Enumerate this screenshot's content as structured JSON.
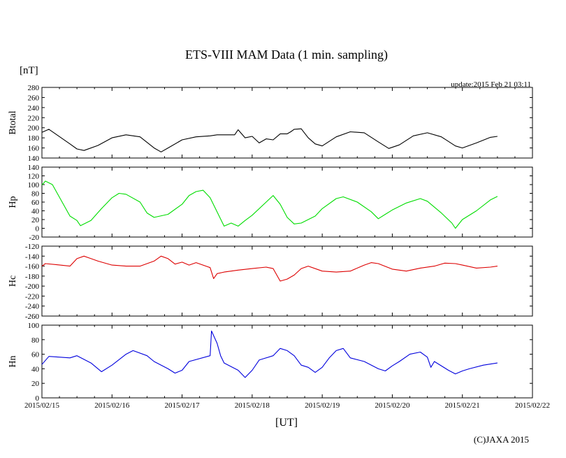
{
  "chart_data": {
    "type": "line",
    "title": "ETS-VIII MAM Data (1 min. sampling)",
    "units_label": "[nT]",
    "xlabel": "[UT]",
    "update": "update:2015 Feb 21 03:11",
    "credit": "(C)JAXA 2015",
    "x_ticks": [
      "2015/02/15",
      "2015/02/16",
      "2015/02/17",
      "2015/02/18",
      "2015/02/19",
      "2015/02/20",
      "2015/02/21",
      "2015/02/22"
    ],
    "x_unit": "days since 2015/02/15 00:00 UT",
    "xlim": [
      0,
      7
    ],
    "panels": [
      {
        "name": "Btotal",
        "color": "#000000",
        "ylim": [
          140,
          280
        ],
        "y_ticks": [
          "280",
          "260",
          "240",
          "220",
          "200",
          "180",
          "160",
          "140"
        ],
        "points": [
          [
            0,
            191
          ],
          [
            0.1,
            197
          ],
          [
            0.4,
            168
          ],
          [
            0.5,
            158
          ],
          [
            0.6,
            155
          ],
          [
            0.8,
            165
          ],
          [
            1.0,
            180
          ],
          [
            1.2,
            186
          ],
          [
            1.4,
            182
          ],
          [
            1.6,
            160
          ],
          [
            1.7,
            152
          ],
          [
            1.8,
            160
          ],
          [
            2.0,
            176
          ],
          [
            2.2,
            182
          ],
          [
            2.4,
            184
          ],
          [
            2.5,
            186
          ],
          [
            2.75,
            186
          ],
          [
            2.8,
            196
          ],
          [
            2.9,
            180
          ],
          [
            3.0,
            183
          ],
          [
            3.1,
            170
          ],
          [
            3.2,
            178
          ],
          [
            3.3,
            176
          ],
          [
            3.4,
            188
          ],
          [
            3.5,
            188
          ],
          [
            3.55,
            192
          ],
          [
            3.6,
            197
          ],
          [
            3.7,
            198
          ],
          [
            3.8,
            180
          ],
          [
            3.9,
            168
          ],
          [
            4.0,
            164
          ],
          [
            4.2,
            182
          ],
          [
            4.4,
            192
          ],
          [
            4.6,
            190
          ],
          [
            4.8,
            172
          ],
          [
            4.95,
            159
          ],
          [
            5.1,
            166
          ],
          [
            5.3,
            184
          ],
          [
            5.5,
            190
          ],
          [
            5.7,
            182
          ],
          [
            5.9,
            164
          ],
          [
            6.0,
            160
          ],
          [
            6.2,
            170
          ],
          [
            6.4,
            181
          ],
          [
            6.5,
            183
          ]
        ]
      },
      {
        "name": "Hp",
        "color": "#00dd00",
        "ylim": [
          -20,
          140
        ],
        "y_ticks": [
          "140",
          "120",
          "100",
          "80",
          "60",
          "40",
          "20",
          "0",
          "-20"
        ],
        "points": [
          [
            0,
            99
          ],
          [
            0.05,
            108
          ],
          [
            0.15,
            100
          ],
          [
            0.4,
            28
          ],
          [
            0.5,
            18
          ],
          [
            0.55,
            6
          ],
          [
            0.7,
            18
          ],
          [
            0.85,
            45
          ],
          [
            1.0,
            70
          ],
          [
            1.1,
            80
          ],
          [
            1.2,
            78
          ],
          [
            1.4,
            60
          ],
          [
            1.5,
            35
          ],
          [
            1.6,
            25
          ],
          [
            1.8,
            32
          ],
          [
            2.0,
            55
          ],
          [
            2.1,
            75
          ],
          [
            2.2,
            84
          ],
          [
            2.3,
            87
          ],
          [
            2.4,
            70
          ],
          [
            2.6,
            5
          ],
          [
            2.7,
            12
          ],
          [
            2.8,
            5
          ],
          [
            2.9,
            18
          ],
          [
            3.0,
            30
          ],
          [
            3.2,
            60
          ],
          [
            3.3,
            75
          ],
          [
            3.4,
            55
          ],
          [
            3.5,
            25
          ],
          [
            3.6,
            10
          ],
          [
            3.7,
            12
          ],
          [
            3.8,
            20
          ],
          [
            3.9,
            28
          ],
          [
            4.0,
            45
          ],
          [
            4.2,
            68
          ],
          [
            4.3,
            72
          ],
          [
            4.5,
            60
          ],
          [
            4.7,
            38
          ],
          [
            4.8,
            22
          ],
          [
            4.9,
            32
          ],
          [
            5.0,
            42
          ],
          [
            5.2,
            58
          ],
          [
            5.4,
            68
          ],
          [
            5.5,
            62
          ],
          [
            5.7,
            35
          ],
          [
            5.85,
            12
          ],
          [
            5.9,
            0
          ],
          [
            6.0,
            20
          ],
          [
            6.2,
            40
          ],
          [
            6.4,
            65
          ],
          [
            6.5,
            73
          ]
        ]
      },
      {
        "name": "Hc",
        "color": "#dd0000",
        "ylim": [
          -260,
          -120
        ],
        "y_ticks": [
          "-120",
          "-140",
          "-160",
          "-180",
          "-200",
          "-220",
          "-240",
          "-260"
        ],
        "points": [
          [
            0,
            -160
          ],
          [
            0.05,
            -155
          ],
          [
            0.2,
            -157
          ],
          [
            0.4,
            -160
          ],
          [
            0.5,
            -145
          ],
          [
            0.6,
            -140
          ],
          [
            0.8,
            -150
          ],
          [
            1.0,
            -158
          ],
          [
            1.2,
            -160
          ],
          [
            1.4,
            -160
          ],
          [
            1.6,
            -150
          ],
          [
            1.7,
            -140
          ],
          [
            1.8,
            -145
          ],
          [
            1.9,
            -156
          ],
          [
            2.0,
            -152
          ],
          [
            2.1,
            -158
          ],
          [
            2.2,
            -153
          ],
          [
            2.4,
            -163
          ],
          [
            2.45,
            -185
          ],
          [
            2.5,
            -175
          ],
          [
            2.6,
            -172
          ],
          [
            2.8,
            -168
          ],
          [
            3.0,
            -165
          ],
          [
            3.2,
            -162
          ],
          [
            3.3,
            -165
          ],
          [
            3.4,
            -190
          ],
          [
            3.5,
            -186
          ],
          [
            3.6,
            -178
          ],
          [
            3.7,
            -165
          ],
          [
            3.8,
            -160
          ],
          [
            4.0,
            -170
          ],
          [
            4.2,
            -172
          ],
          [
            4.4,
            -170
          ],
          [
            4.6,
            -158
          ],
          [
            4.7,
            -153
          ],
          [
            4.8,
            -155
          ],
          [
            5.0,
            -166
          ],
          [
            5.2,
            -170
          ],
          [
            5.4,
            -164
          ],
          [
            5.6,
            -160
          ],
          [
            5.75,
            -154
          ],
          [
            5.9,
            -155
          ],
          [
            6.0,
            -158
          ],
          [
            6.2,
            -164
          ],
          [
            6.4,
            -162
          ],
          [
            6.5,
            -160
          ]
        ]
      },
      {
        "name": "Hn",
        "color": "#0000dd",
        "ylim": [
          0,
          100
        ],
        "y_ticks": [
          "100",
          "80",
          "60",
          "40",
          "20",
          "0"
        ],
        "points": [
          [
            0,
            46
          ],
          [
            0.1,
            57
          ],
          [
            0.4,
            55
          ],
          [
            0.5,
            58
          ],
          [
            0.7,
            48
          ],
          [
            0.85,
            36
          ],
          [
            1.0,
            45
          ],
          [
            1.2,
            60
          ],
          [
            1.3,
            65
          ],
          [
            1.5,
            58
          ],
          [
            1.6,
            50
          ],
          [
            1.8,
            40
          ],
          [
            1.9,
            34
          ],
          [
            2.0,
            38
          ],
          [
            2.1,
            50
          ],
          [
            2.4,
            58
          ],
          [
            2.42,
            92
          ],
          [
            2.5,
            75
          ],
          [
            2.55,
            58
          ],
          [
            2.6,
            48
          ],
          [
            2.8,
            38
          ],
          [
            2.9,
            28
          ],
          [
            3.0,
            38
          ],
          [
            3.1,
            52
          ],
          [
            3.3,
            58
          ],
          [
            3.4,
            68
          ],
          [
            3.5,
            65
          ],
          [
            3.6,
            58
          ],
          [
            3.7,
            45
          ],
          [
            3.8,
            42
          ],
          [
            3.9,
            35
          ],
          [
            4.0,
            42
          ],
          [
            4.1,
            55
          ],
          [
            4.2,
            65
          ],
          [
            4.3,
            68
          ],
          [
            4.4,
            55
          ],
          [
            4.6,
            50
          ],
          [
            4.8,
            40
          ],
          [
            4.9,
            37
          ],
          [
            5.0,
            44
          ],
          [
            5.1,
            50
          ],
          [
            5.25,
            60
          ],
          [
            5.4,
            63
          ],
          [
            5.5,
            56
          ],
          [
            5.55,
            42
          ],
          [
            5.6,
            50
          ],
          [
            5.8,
            38
          ],
          [
            5.9,
            33
          ],
          [
            6.0,
            37
          ],
          [
            6.1,
            40
          ],
          [
            6.3,
            45
          ],
          [
            6.5,
            48
          ]
        ]
      }
    ]
  }
}
